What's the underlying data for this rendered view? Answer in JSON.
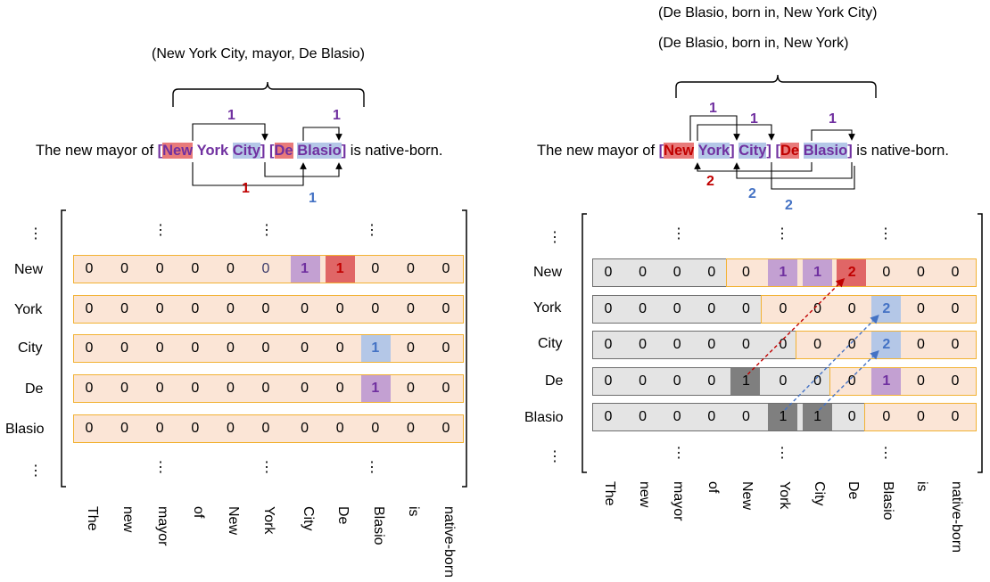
{
  "left": {
    "triple": "(New York City, mayor, De Blasio)",
    "sentence": {
      "prefix": "The new mayor of ",
      "tokens": [
        "[",
        "New",
        "York",
        "City",
        "]",
        "[",
        "De",
        "Blasio",
        "]"
      ],
      "suffix": " is native-born."
    },
    "arc_labels": [
      "1",
      "1",
      "1",
      "1"
    ],
    "row_labels": [
      "New",
      "York",
      "City",
      "De",
      "Blasio"
    ],
    "col_labels": [
      "The",
      "new",
      "mayor",
      "of",
      "New",
      "York",
      "City",
      "De",
      "Blasio",
      "is",
      "native-born"
    ],
    "matrix": [
      [
        "0",
        "0",
        "0",
        "0",
        "0",
        "0",
        "1",
        "1",
        "0",
        "0",
        "0"
      ],
      [
        "0",
        "0",
        "0",
        "0",
        "0",
        "0",
        "0",
        "0",
        "0",
        "0",
        "0"
      ],
      [
        "0",
        "0",
        "0",
        "0",
        "0",
        "0",
        "0",
        "0",
        "1",
        "0",
        "0"
      ],
      [
        "0",
        "0",
        "0",
        "0",
        "0",
        "0",
        "0",
        "0",
        "1",
        "0",
        "0"
      ],
      [
        "0",
        "0",
        "0",
        "0",
        "0",
        "0",
        "0",
        "0",
        "0",
        "0",
        "0"
      ]
    ],
    "ellipsis": "⋮"
  },
  "right": {
    "triples": [
      "(De Blasio, born in, New York City)",
      "(De Blasio, born in, New York)"
    ],
    "sentence": {
      "prefix": "The new mayor of ",
      "suffix": " is native-born."
    },
    "arc_labels": [
      "1",
      "1",
      "1",
      "2",
      "2",
      "2"
    ],
    "row_labels": [
      "New",
      "York",
      "City",
      "De",
      "Blasio"
    ],
    "col_labels": [
      "The",
      "new",
      "mayor",
      "of",
      "New",
      "York",
      "City",
      "De",
      "Blasio",
      "is",
      "native-born"
    ],
    "matrix": [
      [
        "0",
        "0",
        "0",
        "0",
        "0",
        "1",
        "1",
        "2",
        "0",
        "0",
        "0"
      ],
      [
        "0",
        "0",
        "0",
        "0",
        "0",
        "0",
        "0",
        "0",
        "2",
        "0",
        "0"
      ],
      [
        "0",
        "0",
        "0",
        "0",
        "0",
        "0",
        "0",
        "0",
        "2",
        "0",
        "0"
      ],
      [
        "0",
        "0",
        "0",
        "0",
        "1",
        "0",
        "0",
        "0",
        "1",
        "0",
        "0"
      ],
      [
        "0",
        "0",
        "0",
        "0",
        "0",
        "1",
        "1",
        "0",
        "0",
        "0",
        "0"
      ]
    ],
    "ellipsis": "⋮"
  },
  "colors": {
    "purple": "#7030a0",
    "red": "#c00000",
    "blue": "#4472c4",
    "cell_purple": "#c3a0d2",
    "cell_red": "#e06666",
    "cell_blue": "#b4c7e7",
    "cell_dark": "#7f7f7f",
    "row_fill": "#fbe5d6",
    "row_border": "#f2b233",
    "gray_fill": "#e4e4e4"
  }
}
